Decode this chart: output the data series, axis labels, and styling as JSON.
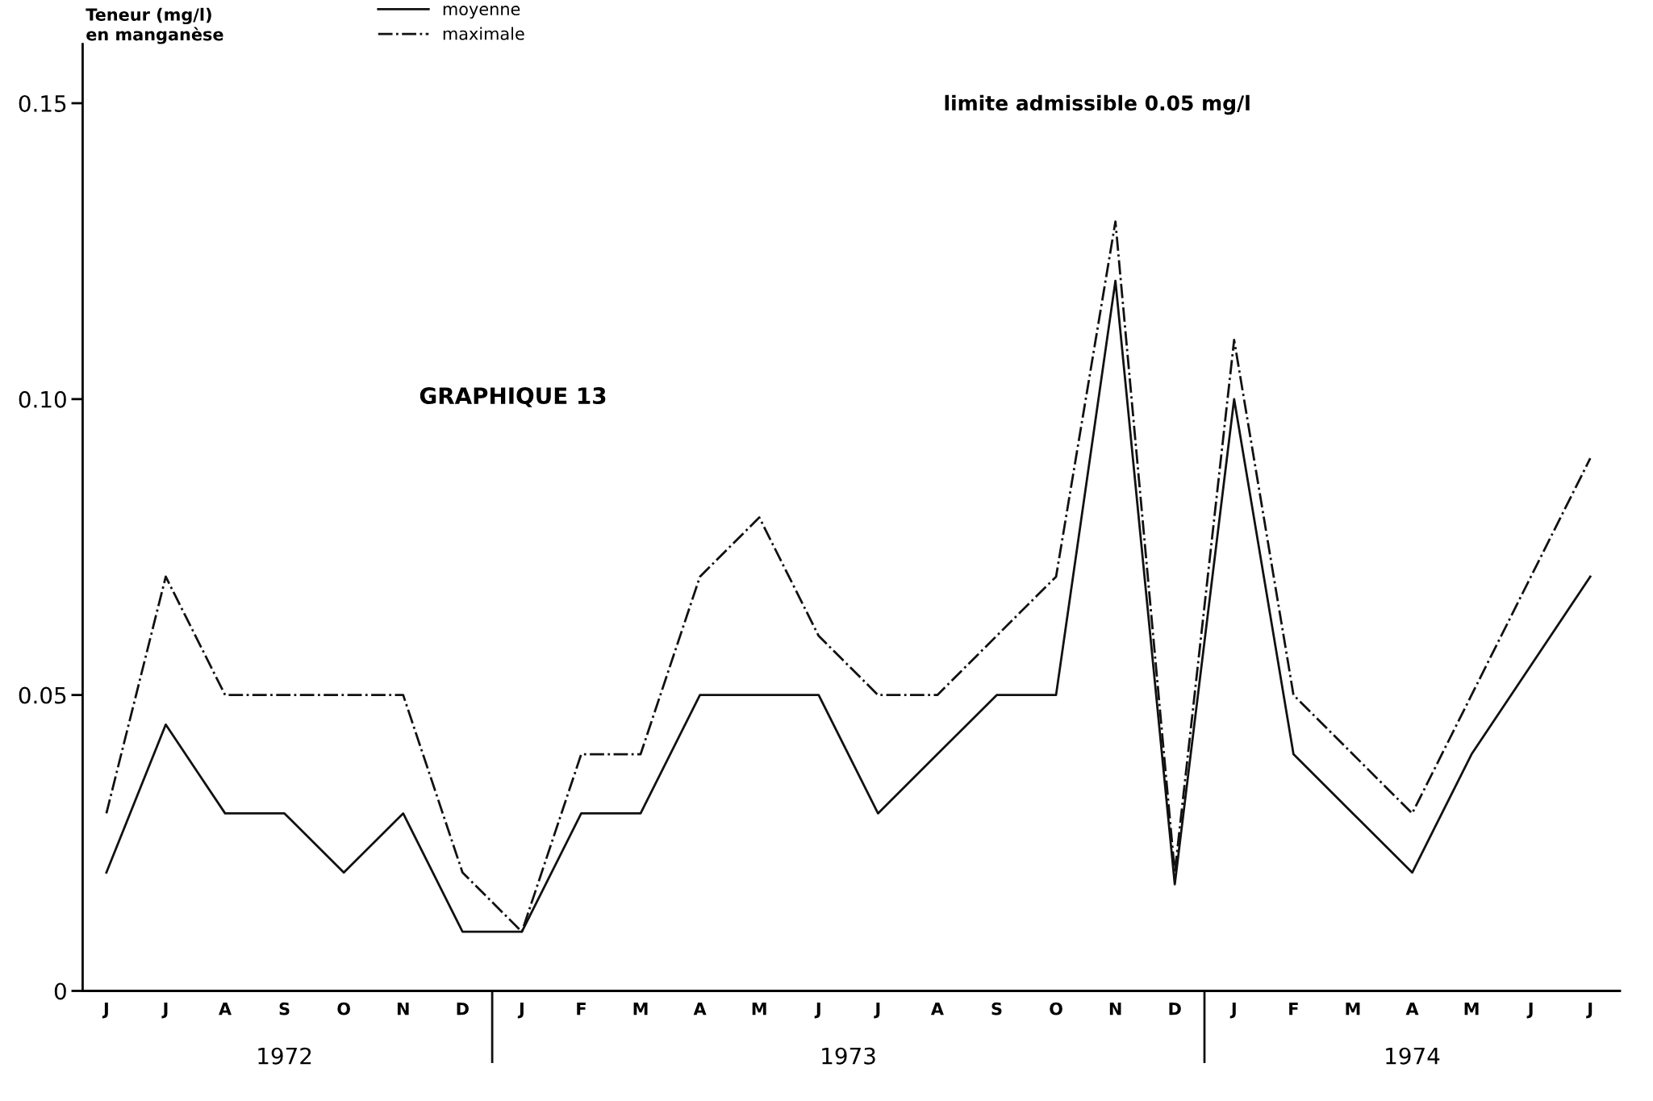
{
  "chart_data": {
    "type": "line",
    "categories": [
      "J",
      "J",
      "A",
      "S",
      "O",
      "N",
      "D",
      "J",
      "F",
      "M",
      "A",
      "M",
      "J",
      "J",
      "A",
      "S",
      "O",
      "N",
      "D",
      "J",
      "F",
      "M",
      "A",
      "M",
      "J",
      "J"
    ],
    "series": [
      {
        "name": "moyenne",
        "color": "#111111",
        "line_style": "solid",
        "values": [
          0.02,
          0.045,
          0.03,
          0.03,
          0.02,
          0.03,
          0.01,
          0.01,
          0.03,
          0.03,
          0.05,
          0.05,
          0.05,
          0.03,
          0.04,
          0.05,
          0.05,
          0.12,
          0.018,
          0.1,
          0.04,
          0.03,
          0.02,
          0.04,
          0.055,
          0.07
        ]
      },
      {
        "name": "maximale",
        "color": "#111111",
        "line_style": "dashdot",
        "values": [
          0.03,
          0.07,
          0.05,
          0.05,
          0.05,
          0.05,
          0.02,
          0.01,
          0.04,
          0.04,
          0.07,
          0.08,
          0.06,
          0.05,
          0.05,
          0.06,
          0.07,
          0.13,
          0.02,
          0.11,
          0.05,
          0.04,
          0.03,
          0.05,
          0.07,
          0.09
        ]
      }
    ],
    "ylabel": "Teneur (mg/l)\nen manganèse",
    "ylim": [
      0,
      0.16
    ],
    "yticks": [
      0,
      {
        "value": 0.05,
        "label": "0.05"
      },
      {
        "value": 0.1,
        "label": "0.10"
      },
      {
        "value": 0.15,
        "label": "0.15"
      }
    ],
    "annotations": [
      "1972",
      "1973",
      "1974",
      "GRAPHIQUE 13",
      "limite admissible 0.05 mg/l"
    ],
    "legend": "top",
    "grid": false,
    "marker": "none"
  }
}
